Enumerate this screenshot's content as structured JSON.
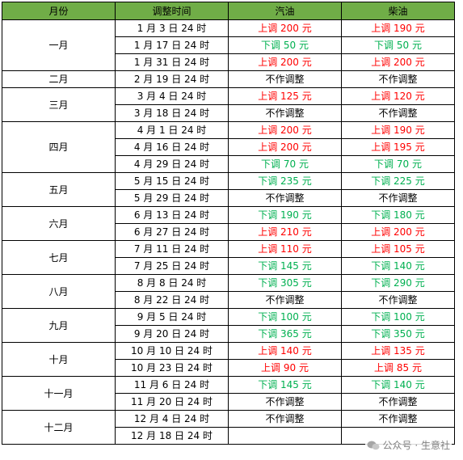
{
  "headers": [
    "月份",
    "调整时间",
    "汽油",
    "柴油"
  ],
  "colors": {
    "header_bg": "#70ad47",
    "increase": "#ff0000",
    "decrease": "#00b050"
  },
  "rows": [
    {
      "month": "一月",
      "span": 3,
      "date": "1 月 3 日 24 时",
      "gas": "上调 200 元",
      "gas_dir": "up",
      "diesel": "上调 190 元",
      "diesel_dir": "up"
    },
    {
      "date": "1 月 17 日 24 时",
      "gas": "下调 50 元",
      "gas_dir": "down",
      "diesel": "下调 50 元",
      "diesel_dir": "down"
    },
    {
      "date": "1 月 31 日 24 时",
      "gas": "上调 200 元",
      "gas_dir": "up",
      "diesel": "上调 200 元",
      "diesel_dir": "up"
    },
    {
      "month": "二月",
      "span": 1,
      "date": "2 月 19 日 24 时",
      "gas": "不作调整",
      "gas_dir": "none",
      "diesel": "不作调整",
      "diesel_dir": "none"
    },
    {
      "month": "三月",
      "span": 2,
      "date": "3 月 4 日 24 时",
      "gas": "上调 125 元",
      "gas_dir": "up",
      "diesel": "上调 120 元",
      "diesel_dir": "up"
    },
    {
      "date": "3 月 18 日 24 时",
      "gas": "不作调整",
      "gas_dir": "none",
      "diesel": "不作调整",
      "diesel_dir": "none"
    },
    {
      "month": "四月",
      "span": 3,
      "date": "4 月 1 日 24 时",
      "gas": "上调 200 元",
      "gas_dir": "up",
      "diesel": "上调 190 元",
      "diesel_dir": "up"
    },
    {
      "date": "4 月 16 日 24 时",
      "gas": "上调 200 元",
      "gas_dir": "up",
      "diesel": "上调 195 元",
      "diesel_dir": "up"
    },
    {
      "date": "4 月 29 日 24 时",
      "gas": "下调 70 元",
      "gas_dir": "down",
      "diesel": "下调 70 元",
      "diesel_dir": "down"
    },
    {
      "month": "五月",
      "span": 2,
      "date": "5 月 15 日 24 时",
      "gas": "下调 235 元",
      "gas_dir": "down",
      "diesel": "下调 225 元",
      "diesel_dir": "down"
    },
    {
      "date": "5 月 29 日 24 时",
      "gas": "不作调整",
      "gas_dir": "none",
      "diesel": "不作调整",
      "diesel_dir": "none"
    },
    {
      "month": "六月",
      "span": 2,
      "date": "6 月 13 日 24 时",
      "gas": "下调 190 元",
      "gas_dir": "down",
      "diesel": "下调 180 元",
      "diesel_dir": "down"
    },
    {
      "date": "6 月 27 日 24 时",
      "gas": "上调 210 元",
      "gas_dir": "up",
      "diesel": "上调 200 元",
      "diesel_dir": "up"
    },
    {
      "month": "七月",
      "span": 2,
      "date": "7 月 11 日 24 时",
      "gas": "上调 110 元",
      "gas_dir": "up",
      "diesel": "上调 105 元",
      "diesel_dir": "up"
    },
    {
      "date": "7 月 25 日 24 时",
      "gas": "下调 145 元",
      "gas_dir": "down",
      "diesel": "下调 140 元",
      "diesel_dir": "down"
    },
    {
      "month": "八月",
      "span": 2,
      "date": "8 月 8 日 24 时",
      "gas": "下调 305 元",
      "gas_dir": "down",
      "diesel": "下调 290 元",
      "diesel_dir": "down"
    },
    {
      "date": "8 月 22 日 24 时",
      "gas": "不作调整",
      "gas_dir": "none",
      "diesel": "不作调整",
      "diesel_dir": "none"
    },
    {
      "month": "九月",
      "span": 2,
      "date": "9 月 5 日 24 时",
      "gas": "下调 100 元",
      "gas_dir": "down",
      "diesel": "下调 100 元",
      "diesel_dir": "down"
    },
    {
      "date": "9 月 20 日 24 时",
      "gas": "下调 365 元",
      "gas_dir": "down",
      "diesel": "下调 350 元",
      "diesel_dir": "down"
    },
    {
      "month": "十月",
      "span": 2,
      "date": "10 月 10 日 24 时",
      "gas": "上调 140 元",
      "gas_dir": "up",
      "diesel": "上调 135 元",
      "diesel_dir": "up"
    },
    {
      "date": "10 月 23 日 24 时",
      "gas": "上调 90 元",
      "gas_dir": "up",
      "diesel": "上调 85 元",
      "diesel_dir": "up"
    },
    {
      "month": "十一月",
      "span": 2,
      "date": "11 月 6 日 24 时",
      "gas": "下调 145 元",
      "gas_dir": "down",
      "diesel": "下调 140 元",
      "diesel_dir": "down"
    },
    {
      "date": "11 月 20 日 24 时",
      "gas": "不作调整",
      "gas_dir": "none",
      "diesel": "不作调整",
      "diesel_dir": "none"
    },
    {
      "month": "十二月",
      "span": 2,
      "date": "12 月 4 日 24 时",
      "gas": "不作调整",
      "gas_dir": "none",
      "diesel": "不作调整",
      "diesel_dir": "none"
    },
    {
      "date": "12 月 18 日 24 时",
      "gas": "",
      "gas_dir": "none",
      "diesel": "",
      "diesel_dir": "none"
    }
  ],
  "watermark": {
    "text": "公众号 · 生意社",
    "icon": "wechat-icon"
  }
}
